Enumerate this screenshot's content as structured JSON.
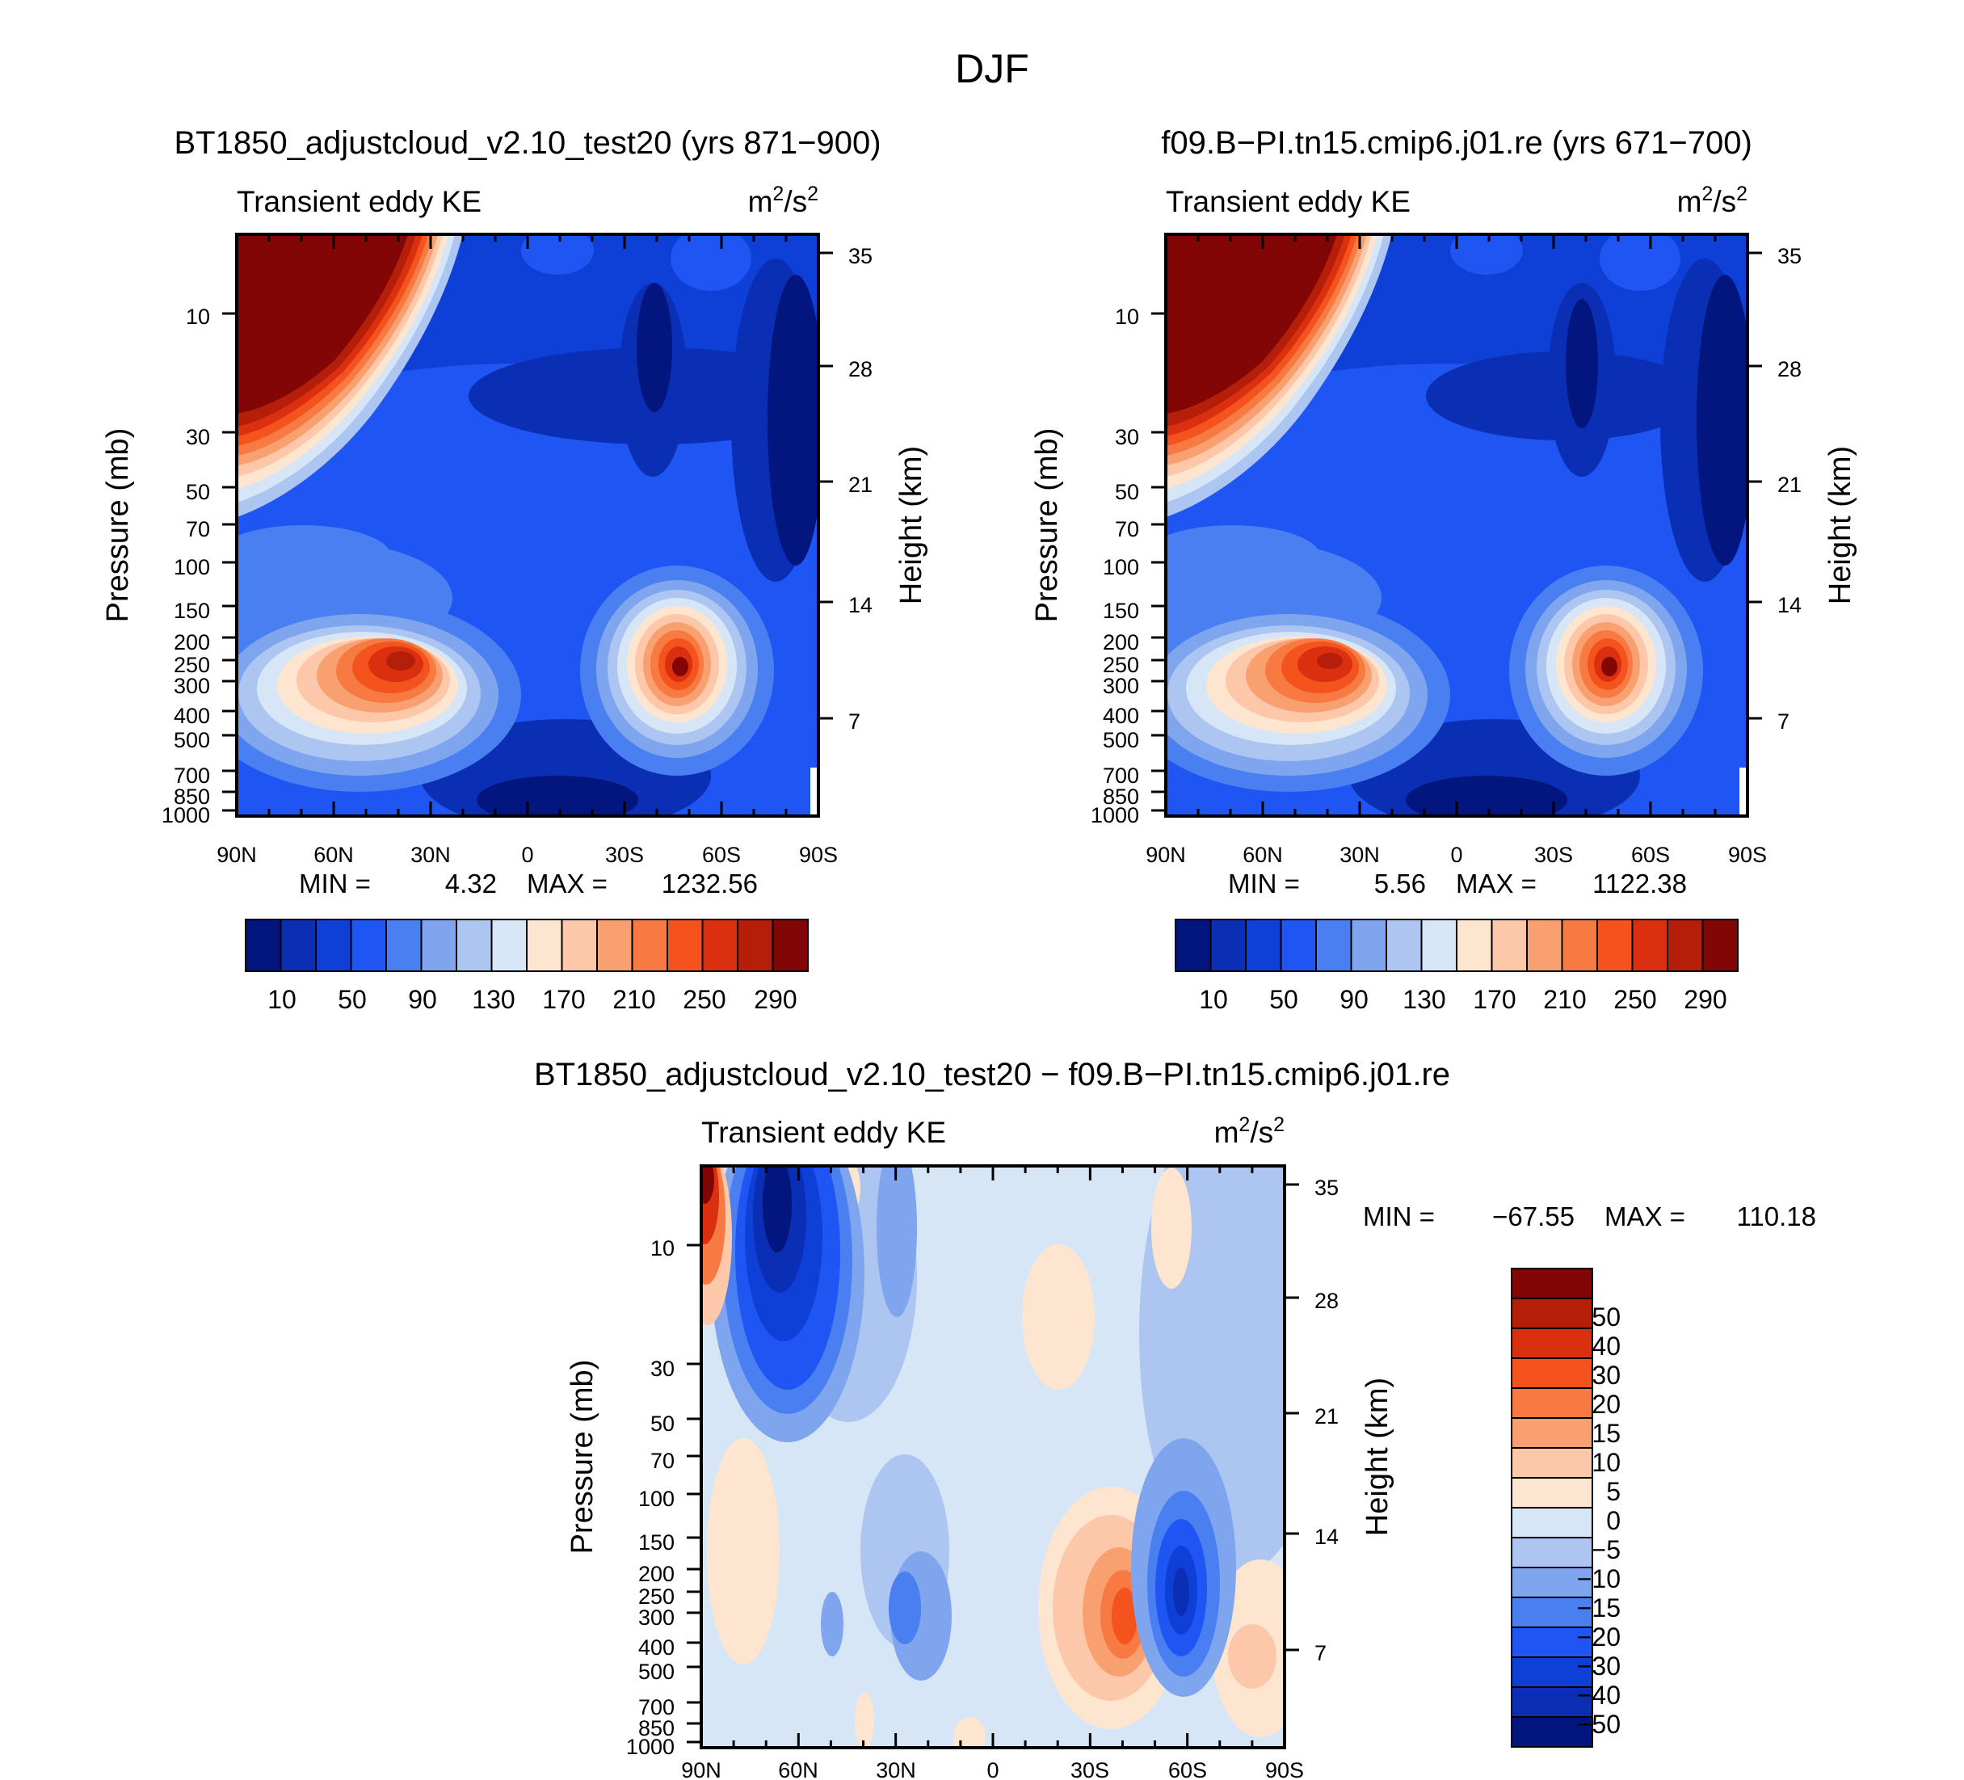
{
  "figure_title": "DJF",
  "chart_data": [
    {
      "type": "heatmap",
      "id": "model_1",
      "title": "BT1850_adjustcloud_v2.10_test20 (yrs 871-900)",
      "title_display": "BT1850_adjustcloud_v2.10_test20 (yrs 871−900)",
      "left_header": "Transient eddy KE",
      "units_base": "m",
      "units_exp1": "2",
      "units_mid": "/s",
      "units_exp2": "2",
      "xlabel": "",
      "ylabel": "Pressure (mb)",
      "y2label": "Height (km)",
      "x_ticks": [
        "90N",
        "60N",
        "30N",
        "0",
        "30S",
        "60S",
        "90S"
      ],
      "y_ticks": [
        "10",
        "30",
        "50",
        "70",
        "100",
        "150",
        "200",
        "250",
        "300",
        "400",
        "500",
        "700",
        "850",
        "1000"
      ],
      "y2_ticks": [
        "35",
        "28",
        "21",
        "14",
        "7"
      ],
      "min_label": "MIN =",
      "min_value": "4.32",
      "max_label": "MAX =",
      "max_value": "1232.56",
      "colorbar_levels": [
        10,
        30,
        50,
        70,
        90,
        110,
        130,
        150,
        170,
        190,
        210,
        230,
        250,
        270,
        290
      ],
      "colorbar_labels": [
        "10",
        "50",
        "90",
        "130",
        "170",
        "210",
        "250",
        "290"
      ],
      "colorbar_colors": [
        "#03157f",
        "#0a2fb5",
        "#0e3fd6",
        "#1f55f2",
        "#4a7ff1",
        "#7fa5ef",
        "#acc6f1",
        "#d6e6f7",
        "#fde5d0",
        "#fcc8a9",
        "#f8a06f",
        "#f87a43",
        "#f5531d",
        "#da3010",
        "#b51f0a",
        "#830606"
      ],
      "features": [
        {
          "kind": "jet_max",
          "lat": 38,
          "pressure": 270,
          "value": 300
        },
        {
          "kind": "jet_max",
          "lat": -48,
          "pressure": 280,
          "value": 300
        },
        {
          "kind": "polar_vortex",
          "lat_range": [
            90,
            28
          ],
          "pressure_range": [
            5,
            35
          ],
          "value": 300
        }
      ]
    },
    {
      "type": "heatmap",
      "id": "model_2",
      "title": "f09.B-PI.tn15.cmip6.j01.re (yrs 671-700)",
      "title_display": "f09.B−PI.tn15.cmip6.j01.re (yrs 671−700)",
      "left_header": "Transient eddy KE",
      "units_base": "m",
      "units_exp1": "2",
      "units_mid": "/s",
      "units_exp2": "2",
      "xlabel": "",
      "ylabel": "Pressure (mb)",
      "y2label": "Height (km)",
      "x_ticks": [
        "90N",
        "60N",
        "30N",
        "0",
        "30S",
        "60S",
        "90S"
      ],
      "y_ticks": [
        "10",
        "30",
        "50",
        "70",
        "100",
        "150",
        "200",
        "250",
        "300",
        "400",
        "500",
        "700",
        "850",
        "1000"
      ],
      "y2_ticks": [
        "35",
        "28",
        "21",
        "14",
        "7"
      ],
      "min_label": "MIN =",
      "min_value": "5.56",
      "max_label": "MAX =",
      "max_value": "1122.38",
      "colorbar_levels": [
        10,
        30,
        50,
        70,
        90,
        110,
        130,
        150,
        170,
        190,
        210,
        230,
        250,
        270,
        290
      ],
      "colorbar_labels": [
        "10",
        "50",
        "90",
        "130",
        "170",
        "210",
        "250",
        "290"
      ],
      "colorbar_colors": [
        "#03157f",
        "#0a2fb5",
        "#0e3fd6",
        "#1f55f2",
        "#4a7ff1",
        "#7fa5ef",
        "#acc6f1",
        "#d6e6f7",
        "#fde5d0",
        "#fcc8a9",
        "#f8a06f",
        "#f87a43",
        "#f5531d",
        "#da3010",
        "#b51f0a",
        "#830606"
      ],
      "features": [
        {
          "kind": "jet_max",
          "lat": 38,
          "pressure": 270,
          "value": 290
        },
        {
          "kind": "jet_max",
          "lat": -48,
          "pressure": 280,
          "value": 300
        },
        {
          "kind": "polar_vortex",
          "lat_range": [
            90,
            28
          ],
          "pressure_range": [
            5,
            35
          ],
          "value": 300
        }
      ]
    },
    {
      "type": "heatmap",
      "id": "difference",
      "title": "BT1850_adjustcloud_v2.10_test20 - f09.B-PI.tn15.cmip6.j01.re",
      "title_display": "BT1850_adjustcloud_v2.10_test20 − f09.B−PI.tn15.cmip6.j01.re",
      "left_header": "Transient eddy KE",
      "units_base": "m",
      "units_exp1": "2",
      "units_mid": "/s",
      "units_exp2": "2",
      "xlabel": "",
      "ylabel": "Pressure (mb)",
      "y2label": "Height (km)",
      "x_ticks": [
        "90N",
        "60N",
        "30N",
        "0",
        "30S",
        "60S",
        "90S"
      ],
      "y_ticks": [
        "10",
        "30",
        "50",
        "70",
        "100",
        "150",
        "200",
        "250",
        "300",
        "400",
        "500",
        "700",
        "850",
        "1000"
      ],
      "y2_ticks": [
        "35",
        "28",
        "21",
        "14",
        "7"
      ],
      "min_label": "MIN =",
      "min_value": "−67.55",
      "max_label": "MAX =",
      "max_value": "110.18",
      "colorbar_levels": [
        -50,
        -40,
        -30,
        -20,
        -15,
        -10,
        -5,
        0,
        5,
        10,
        15,
        20,
        30,
        40,
        50
      ],
      "colorbar_labels": [
        "−50",
        "−40",
        "−30",
        "−20",
        "−15",
        "−10",
        "−5",
        "0",
        "5",
        "10",
        "15",
        "20",
        "30",
        "40",
        "50"
      ],
      "colorbar_colors": [
        "#03157f",
        "#0a2fb5",
        "#0e3fd6",
        "#1f55f2",
        "#4a7ff1",
        "#7fa5ef",
        "#acc6f1",
        "#d6e6f7",
        "#fde5d0",
        "#fcc8a9",
        "#f8a06f",
        "#f87a43",
        "#f5531d",
        "#da3010",
        "#b51f0a",
        "#830606"
      ],
      "features": [
        {
          "kind": "max",
          "lat": 88,
          "pressure": 8,
          "value": 50
        },
        {
          "kind": "min",
          "lat": 65,
          "pressure": 15,
          "value": -50
        },
        {
          "kind": "max",
          "lat": -40,
          "pressure": 280,
          "value": 40
        },
        {
          "kind": "min",
          "lat": -60,
          "pressure": 250,
          "value": -40
        }
      ]
    }
  ]
}
